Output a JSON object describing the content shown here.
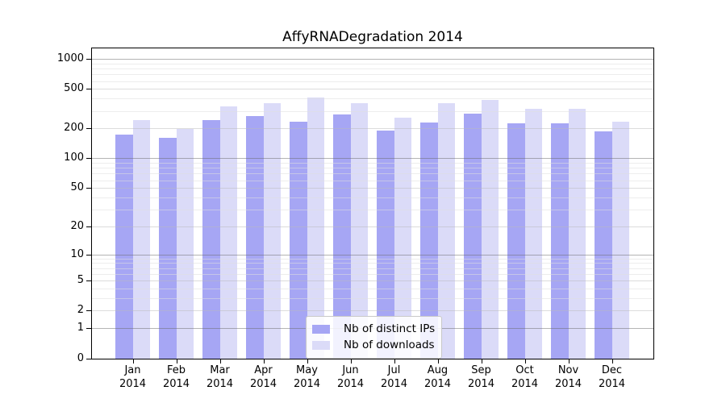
{
  "chart_data": {
    "type": "bar",
    "title": "AffyRNADegradation 2014",
    "categories": [
      "Jan",
      "Feb",
      "Mar",
      "Apr",
      "May",
      "Jun",
      "Jul",
      "Aug",
      "Sep",
      "Oct",
      "Nov",
      "Dec"
    ],
    "x_tick_label_line2": "2014",
    "series": [
      {
        "name": "Nb of distinct IPs",
        "color": "#a6a6f4",
        "values": [
          175,
          160,
          242,
          265,
          234,
          278,
          192,
          231,
          280,
          227,
          227,
          186
        ]
      },
      {
        "name": "Nb of downloads",
        "color": "#dbdbf8",
        "values": [
          242,
          198,
          335,
          357,
          410,
          360,
          258,
          360,
          385,
          318,
          318,
          232
        ]
      }
    ],
    "y_axis": {
      "scale": "log10(1+x)",
      "ticks": [
        0,
        1,
        2,
        5,
        10,
        20,
        50,
        100,
        200,
        500,
        1000
      ],
      "range": [
        0,
        1000
      ]
    },
    "xlabel": "",
    "ylabel": "",
    "grid": true,
    "legend_position": "inside-bottom-center"
  }
}
